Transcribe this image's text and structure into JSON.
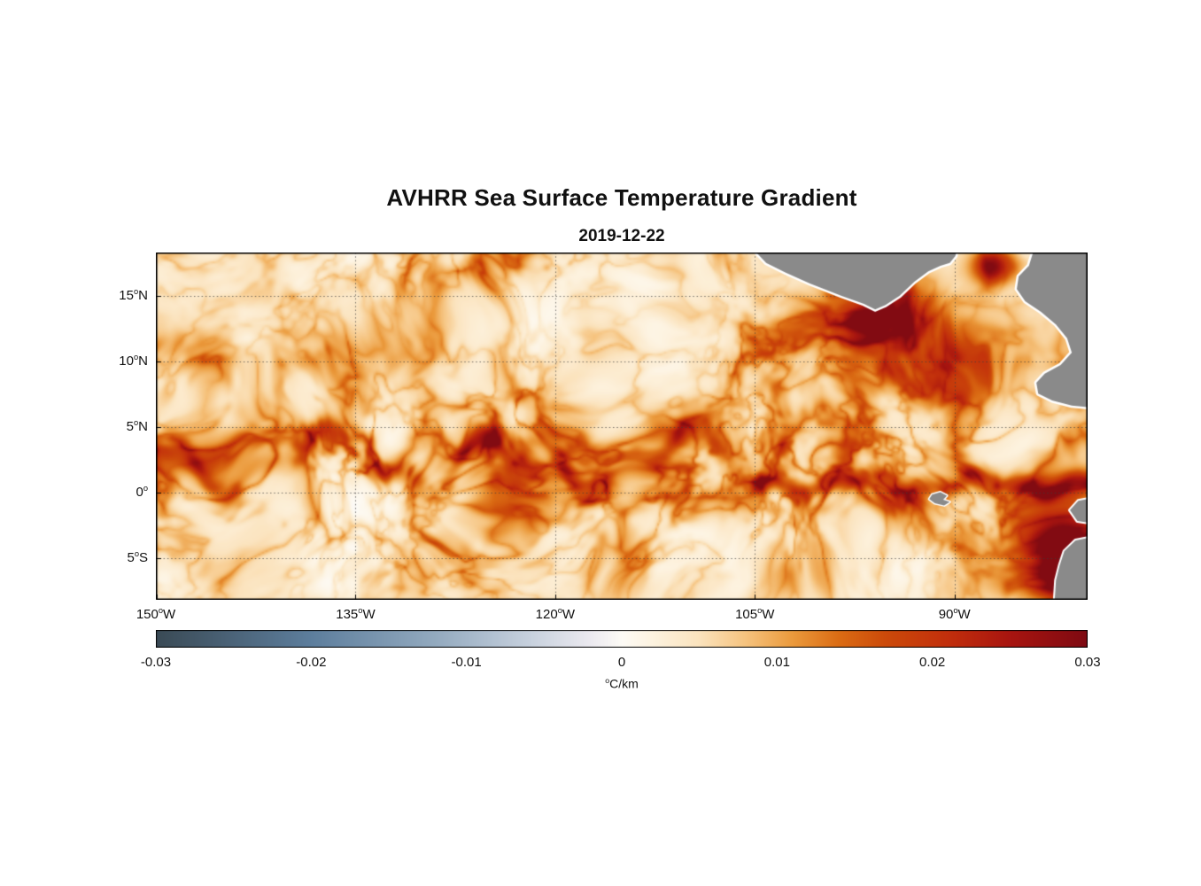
{
  "title": "AVHRR Sea Surface Temperature Gradient",
  "subtitle": "2019-12-22",
  "chart_data": {
    "type": "heatmap",
    "title": "AVHRR Sea Surface Temperature Gradient",
    "subtitle": "2019-12-22",
    "grid": true,
    "x_axis": {
      "range": [
        -150,
        -80
      ],
      "ticks": [
        {
          "label": "150°W",
          "value": -150
        },
        {
          "label": "135°W",
          "value": -135
        },
        {
          "label": "120°W",
          "value": -120
        },
        {
          "label": "105°W",
          "value": -105
        },
        {
          "label": "90°W",
          "value": -90
        }
      ]
    },
    "y_axis": {
      "range": [
        -8.2,
        18.3
      ],
      "ticks": [
        {
          "label": "15°N",
          "value": 15
        },
        {
          "label": "10°N",
          "value": 10
        },
        {
          "label": "5°N",
          "value": 5
        },
        {
          "label": "0°",
          "value": 0
        },
        {
          "label": "5°S",
          "value": -5
        }
      ]
    },
    "colorbar": {
      "label": "°C/km",
      "range": [
        -0.03,
        0.03
      ],
      "ticks": [
        {
          "label": "-0.03",
          "value": -0.03
        },
        {
          "label": "-0.02",
          "value": -0.02
        },
        {
          "label": "-0.01",
          "value": -0.01
        },
        {
          "label": "0",
          "value": 0
        },
        {
          "label": "0.01",
          "value": 0.01
        },
        {
          "label": "0.02",
          "value": 0.02
        },
        {
          "label": "0.03",
          "value": 0.03
        }
      ],
      "colormap": [
        [
          -0.03,
          "#3a4a55"
        ],
        [
          -0.02,
          "#5d7e9d"
        ],
        [
          -0.012,
          "#93aabf"
        ],
        [
          -0.006,
          "#c6d0dd"
        ],
        [
          -0.002,
          "#eceaf0"
        ],
        [
          0.0,
          "#fdfbf6"
        ],
        [
          0.002,
          "#fdf3e0"
        ],
        [
          0.005,
          "#fbe3bd"
        ],
        [
          0.008,
          "#f6c37e"
        ],
        [
          0.011,
          "#eb9a3c"
        ],
        [
          0.014,
          "#db6c14"
        ],
        [
          0.017,
          "#cc4a0a"
        ],
        [
          0.021,
          "#c22f0c"
        ],
        [
          0.025,
          "#a81510"
        ],
        [
          0.03,
          "#7e0a12"
        ]
      ]
    },
    "map": {
      "land_color": "#8a8a8a",
      "coast_halo_color": "#ffffff",
      "land_polygons": [
        {
          "name": "mexico-central-america",
          "halo": 5,
          "points": [
            [
              0.634,
              -0.03
            ],
            [
              0.655,
              0.03
            ],
            [
              0.676,
              0.058
            ],
            [
              0.702,
              0.089
            ],
            [
              0.736,
              0.125
            ],
            [
              0.76,
              0.148
            ],
            [
              0.772,
              0.164
            ],
            [
              0.783,
              0.151
            ],
            [
              0.798,
              0.125
            ],
            [
              0.814,
              0.084
            ],
            [
              0.829,
              0.054
            ],
            [
              0.842,
              0.038
            ],
            [
              0.852,
              0.03
            ],
            [
              0.858,
              0.01
            ],
            [
              0.862,
              -0.03
            ]
          ]
        },
        {
          "name": "honduras-panama-colombia",
          "halo": 5,
          "points": [
            [
              0.945,
              -0.03
            ],
            [
              0.937,
              0.038
            ],
            [
              0.926,
              0.069
            ],
            [
              0.924,
              0.105
            ],
            [
              0.933,
              0.14
            ],
            [
              0.95,
              0.171
            ],
            [
              0.966,
              0.207
            ],
            [
              0.978,
              0.247
            ],
            [
              0.983,
              0.288
            ],
            [
              0.971,
              0.324
            ],
            [
              0.954,
              0.349
            ],
            [
              0.945,
              0.375
            ],
            [
              0.947,
              0.406
            ],
            [
              0.962,
              0.426
            ],
            [
              0.983,
              0.441
            ],
            [
              1.03,
              0.452
            ],
            [
              1.03,
              -0.03
            ]
          ]
        },
        {
          "name": "galapagos-islands",
          "halo": 3,
          "points": [
            [
              0.833,
              0.697
            ],
            [
              0.842,
              0.69
            ],
            [
              0.849,
              0.7
            ],
            [
              0.845,
              0.712
            ],
            [
              0.852,
              0.718
            ],
            [
              0.846,
              0.728
            ],
            [
              0.836,
              0.722
            ],
            [
              0.83,
              0.71
            ]
          ]
        },
        {
          "name": "ecuador-coast",
          "halo": 4,
          "points": [
            [
              1.03,
              0.695
            ],
            [
              0.99,
              0.715
            ],
            [
              0.981,
              0.742
            ],
            [
              0.989,
              0.773
            ],
            [
              1.03,
              0.79
            ]
          ]
        },
        {
          "name": "peru-coast",
          "halo": 4,
          "points": [
            [
              1.03,
              0.806
            ],
            [
              0.987,
              0.829
            ],
            [
              0.975,
              0.86
            ],
            [
              0.97,
              0.901
            ],
            [
              0.966,
              0.944
            ],
            [
              0.964,
              1.03
            ],
            [
              1.03,
              1.03
            ]
          ]
        }
      ]
    },
    "field": {
      "base_amp": 0.26,
      "background_level": 0.0018,
      "mottle_amp": 0.007,
      "filament_scale": 44,
      "warp": 30,
      "gain": 0.0155,
      "bands": [
        {
          "name": "equatorial-front-band",
          "lat": 2.6,
          "sigma": 2.5,
          "strength": 1.0,
          "lon_mod": 0.8
        },
        {
          "name": "south-equatorial-band",
          "lat": -2.8,
          "sigma": 2.3,
          "strength": 0.42,
          "lon_mod": 0.8
        },
        {
          "name": "far-south-band",
          "lat": -6.3,
          "sigma": 1.8,
          "strength": 0.32,
          "lon_mod": 0.8
        },
        {
          "name": "ten-north-band",
          "lat": 10.3,
          "sigma": 2.1,
          "strength": 0.45,
          "lon_mod": 0.9
        },
        {
          "name": "north-edge-band",
          "lat": 17.3,
          "sigma": 1.9,
          "strength": 0.5,
          "lon_mod": 0.9,
          "lon_max": -108
        },
        {
          "name": "five-north-band",
          "lat": 6.5,
          "sigma": 2.0,
          "strength": 0.22,
          "lon_mod": 1.0
        }
      ],
      "fronts": [
        {
          "name": "tropical-instability-wave-front",
          "base_lat": 2.4,
          "amp1": 1.9,
          "k1": 0.45,
          "p1": 0.6,
          "amp2": 0.8,
          "k2": 1.15,
          "p2": 2.0,
          "sigma": 0.75,
          "strength": 0.8,
          "lon_range": [
            -150,
            -104
          ]
        },
        {
          "name": "equatorial-front-east",
          "base_lat": 0.6,
          "amp1": 0.45,
          "k1": 0.7,
          "p1": 0.3,
          "amp2": 0.25,
          "k2": 1.7,
          "p2": 1.1,
          "sigma": 0.55,
          "strength": 0.9,
          "lon_range": [
            -107,
            -80
          ]
        }
      ],
      "hotspots": [
        {
          "name": "tehuantepec-eddy",
          "lon": -95.6,
          "lat": 13.8,
          "sx": 2.3,
          "sy": 1.7,
          "strength": 2.2
        },
        {
          "name": "tehuantepec-halo",
          "lon": -98.0,
          "lat": 12.3,
          "sx": 4.5,
          "sy": 2.5,
          "strength": 0.8
        },
        {
          "name": "caribbean-coastal-spot",
          "lon": -86.9,
          "lat": 17.3,
          "sx": 1.3,
          "sy": 1.0,
          "strength": 2.6
        },
        {
          "name": "papagayo-filaments",
          "lon": -88.8,
          "lat": 10.2,
          "sx": 3.0,
          "sy": 2.2,
          "strength": 0.55
        },
        {
          "name": "costa-rica-dome",
          "lon": -91.5,
          "lat": 8.8,
          "sx": 2.5,
          "sy": 1.8,
          "strength": 0.4
        },
        {
          "name": "peru-upwelling-front",
          "lon": -81.8,
          "lat": -4.6,
          "sx": 2.0,
          "sy": 2.4,
          "strength": 1.8
        },
        {
          "name": "peru-upwelling-south",
          "lon": -80.7,
          "lat": -7.5,
          "sx": 1.6,
          "sy": 1.8,
          "strength": 1.6
        },
        {
          "name": "galapagos-front",
          "lon": -92.5,
          "lat": 0.0,
          "sx": 2.5,
          "sy": 1.2,
          "strength": 0.6
        }
      ]
    }
  }
}
